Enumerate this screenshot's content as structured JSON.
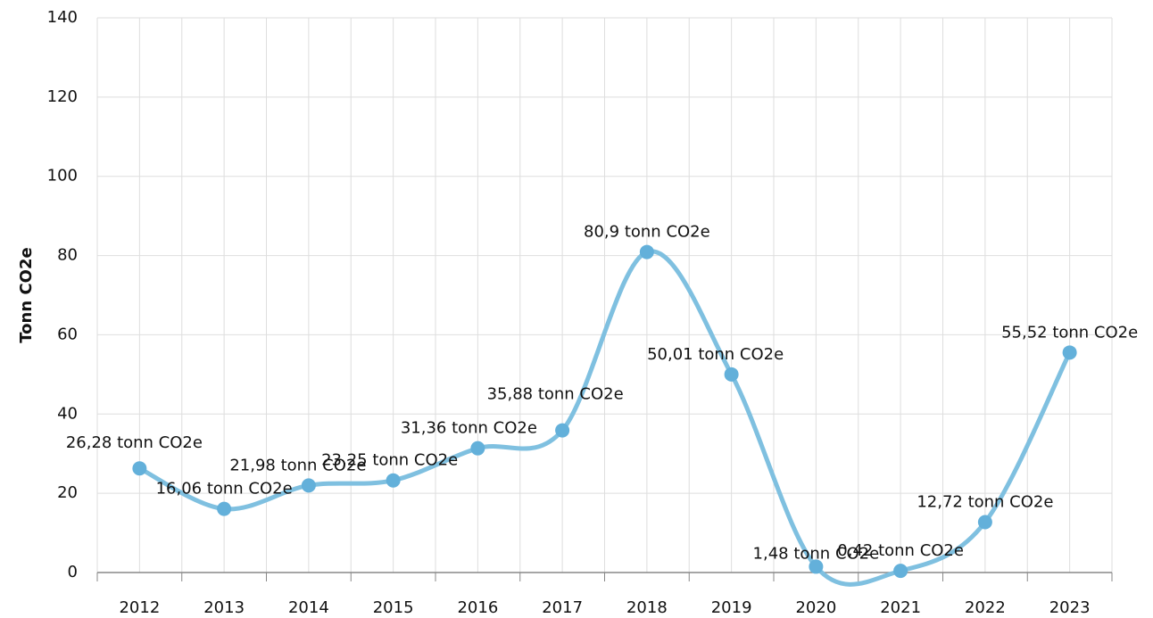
{
  "chart_data": {
    "type": "line",
    "y_label": "Tonn CO2e",
    "categories": [
      "2012",
      "2013",
      "2014",
      "2015",
      "2016",
      "2017",
      "2018",
      "2019",
      "2020",
      "2021",
      "2022",
      "2023"
    ],
    "series": [
      {
        "name": "Tonn CO2e",
        "color": "#7fc0e0",
        "marker_color": "#63b0da",
        "values": [
          26.28,
          16.06,
          21.98,
          23.25,
          31.36,
          35.88,
          80.9,
          50.01,
          1.48,
          0.42,
          12.72,
          55.52
        ],
        "value_labels": [
          "26,28 tonn CO2e",
          "16,06 tonn CO2e",
          "21,98 tonn CO2e",
          "23,25 tonn CO2e",
          "31,36 tonn CO2e",
          "35,88 tonn CO2e",
          "80,9 tonn CO2e",
          "50,01 tonn CO2e",
          "1,48 tonn CO2e",
          "0,42 tonn CO2e",
          "12,72 tonn CO2e",
          "55,52 tonn CO2e"
        ]
      }
    ],
    "ylim": [
      0,
      140
    ],
    "yticks": [
      0,
      20,
      40,
      60,
      80,
      100,
      120,
      140
    ],
    "grid": true,
    "smooth": true
  }
}
